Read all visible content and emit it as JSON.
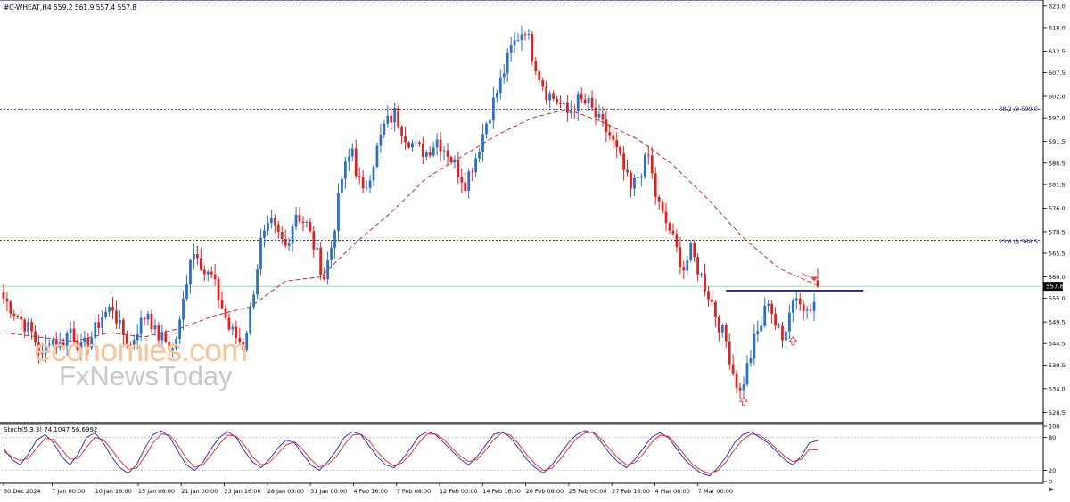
{
  "header": {
    "symbol_line": "#C-WHEAT,H4  559.2 561.9 557.4 557.8",
    "stoch_label": "Stoch(5,3,3) 74.1047 56.6992"
  },
  "watermark": {
    "line1": "economies.com",
    "line2": "FxNewsToday"
  },
  "fib_labels": {
    "fib382": "38.2 @ 599.0",
    "fib236": "23.6 @ 568.5"
  },
  "current_price_tag": "557.8",
  "colors": {
    "bull": "#2a6fc9",
    "bear": "#e0201f",
    "ma": "#b01a1a",
    "fib_line": "#1a1a6e",
    "resistance": "#000080",
    "current_price": "#7fbfbf",
    "stoch_main": "#2222bb",
    "stoch_signal": "#dd2222",
    "arrow": "#e04040"
  },
  "chart_data": [
    {
      "type": "candlestick",
      "title": "#C-WHEAT,H4",
      "ohlc_header": {
        "open": 559.2,
        "high": 561.9,
        "low": 557.4,
        "close": 557.8
      },
      "ylim": [
        526.5,
        624
      ],
      "y_ticks": [
        "623.0",
        "618.0",
        "612.5",
        "607.5",
        "602.0",
        "597.0",
        "591.5",
        "586.5",
        "581.5",
        "576.0",
        "570.5",
        "565.5",
        "560.0",
        "555.0",
        "549.5",
        "544.5",
        "539.5",
        "534.0",
        "528.5"
      ],
      "x_ticks": [
        "30 Dec 2024",
        "7 Jan 00:00",
        "10 Jan 16:00",
        "15 Jan 08:00",
        "21 Jan 00:00",
        "23 Jan 16:00",
        "28 Jan 08:00",
        "31 Jan 00:00",
        "4 Feb 16:00",
        "7 Feb 08:00",
        "12 Feb 00:00",
        "14 Feb 16:00",
        "20 Feb 08:00",
        "25 Feb 00:00",
        "27 Feb 16:00",
        "4 Mar 08:00",
        "7 Mar 00:00"
      ],
      "close_path": [
        [
          0,
          555
        ],
        [
          4,
          551
        ],
        [
          8,
          547
        ],
        [
          11,
          541
        ],
        [
          13,
          546
        ],
        [
          16,
          544
        ],
        [
          19,
          548
        ],
        [
          22,
          543
        ],
        [
          25,
          546
        ],
        [
          28,
          551
        ],
        [
          31,
          553
        ],
        [
          33,
          548
        ],
        [
          36,
          544
        ],
        [
          38,
          548
        ],
        [
          41,
          552
        ],
        [
          43,
          547
        ],
        [
          46,
          545
        ],
        [
          48,
          543
        ],
        [
          50,
          549
        ],
        [
          53,
          565
        ],
        [
          55,
          566
        ],
        [
          57,
          561
        ],
        [
          59,
          560
        ],
        [
          62,
          553
        ],
        [
          64,
          548
        ],
        [
          66,
          546
        ],
        [
          68,
          544
        ],
        [
          70,
          552
        ],
        [
          73,
          568
        ],
        [
          76,
          572
        ],
        [
          80,
          567
        ],
        [
          83,
          575
        ],
        [
          86,
          572
        ],
        [
          89,
          565
        ],
        [
          91,
          560
        ],
        [
          93,
          567
        ],
        [
          96,
          583
        ],
        [
          99,
          590
        ],
        [
          100,
          585
        ],
        [
          102,
          579
        ],
        [
          105,
          587
        ],
        [
          108,
          595
        ],
        [
          111,
          598
        ],
        [
          114,
          593
        ],
        [
          117,
          590
        ],
        [
          120,
          589
        ],
        [
          123,
          592
        ],
        [
          126,
          589
        ],
        [
          128,
          586
        ],
        [
          131,
          582
        ],
        [
          134,
          588
        ],
        [
          137,
          596
        ],
        [
          140,
          603
        ],
        [
          142,
          608
        ],
        [
          144,
          613
        ],
        [
          146,
          616
        ],
        [
          148,
          618
        ],
        [
          150,
          612
        ],
        [
          152,
          607
        ],
        [
          154,
          603
        ],
        [
          157,
          601
        ],
        [
          160,
          598
        ],
        [
          163,
          601
        ],
        [
          166,
          600
        ],
        [
          169,
          596
        ],
        [
          172,
          593
        ],
        [
          175,
          587
        ],
        [
          178,
          580
        ],
        [
          181,
          585
        ],
        [
          183,
          588
        ],
        [
          185,
          579
        ],
        [
          187,
          574
        ],
        [
          189,
          571
        ],
        [
          191,
          566
        ],
        [
          193,
          562
        ],
        [
          195,
          566
        ],
        [
          197,
          562
        ],
        [
          199,
          558
        ],
        [
          201,
          554
        ],
        [
          203,
          549
        ],
        [
          205,
          545
        ],
        [
          207,
          538
        ],
        [
          209,
          533
        ],
        [
          211,
          539
        ],
        [
          213,
          545
        ],
        [
          215,
          549
        ],
        [
          217,
          555
        ],
        [
          219,
          549
        ],
        [
          221,
          545
        ],
        [
          223,
          553
        ],
        [
          225,
          556
        ],
        [
          227,
          552
        ],
        [
          229,
          554
        ],
        [
          231,
          557.8
        ]
      ],
      "moving_average_dashed": [
        [
          0,
          547
        ],
        [
          10,
          546
        ],
        [
          20,
          545
        ],
        [
          30,
          547
        ],
        [
          40,
          546
        ],
        [
          50,
          548
        ],
        [
          60,
          551
        ],
        [
          70,
          553
        ],
        [
          80,
          559
        ],
        [
          90,
          560
        ],
        [
          100,
          568
        ],
        [
          110,
          575
        ],
        [
          120,
          583
        ],
        [
          130,
          588
        ],
        [
          140,
          593
        ],
        [
          150,
          597
        ],
        [
          160,
          599
        ],
        [
          170,
          596
        ],
        [
          180,
          592
        ],
        [
          190,
          586
        ],
        [
          200,
          578
        ],
        [
          210,
          569
        ],
        [
          220,
          562
        ],
        [
          231,
          558
        ]
      ],
      "fibonacci_levels": [
        {
          "label": "38.2 @ 599.0",
          "value": 599.0
        },
        {
          "label": "23.6 @ 568.5",
          "value": 568.5
        }
      ],
      "top_level": 623.5,
      "resistance_line": {
        "value": 556.8,
        "from_bar": 205,
        "to_bar": 244
      },
      "current_price": 557.8,
      "arrows": [
        {
          "bar": 210,
          "value": 531,
          "direction": "up"
        },
        {
          "bar": 224,
          "value": 545,
          "direction": "up"
        },
        {
          "bar": 230,
          "value": 560,
          "direction": "down"
        }
      ]
    },
    {
      "type": "line",
      "title": "Stoch(5,3,3) 74.1047 56.6992",
      "ylim": [
        0,
        100
      ],
      "y_ticks": [
        "100",
        "80",
        "20",
        "0"
      ],
      "levels": [
        80,
        20
      ],
      "series": [
        {
          "name": "Main",
          "values": [
            60,
            40,
            30,
            50,
            75,
            85,
            70,
            45,
            30,
            50,
            80,
            88,
            70,
            45,
            25,
            15,
            30,
            60,
            85,
            92,
            80,
            55,
            30,
            20,
            35,
            60,
            80,
            90,
            80,
            55,
            35,
            25,
            40,
            60,
            75,
            70,
            50,
            30,
            20,
            35,
            55,
            80,
            90,
            85,
            65,
            45,
            30,
            25,
            40,
            60,
            82,
            90,
            85,
            70,
            55,
            40,
            30,
            45,
            65,
            85,
            90,
            80,
            60,
            40,
            25,
            15,
            30,
            50,
            70,
            85,
            92,
            88,
            70,
            50,
            35,
            25,
            40,
            60,
            80,
            88,
            80,
            60,
            40,
            25,
            15,
            10,
            25,
            45,
            70,
            85,
            90,
            80,
            70,
            55,
            40,
            30,
            45,
            70,
            74
          ]
        },
        {
          "name": "Signal",
          "values": [
            55,
            45,
            38,
            42,
            60,
            78,
            76,
            58,
            40,
            42,
            62,
            80,
            76,
            58,
            38,
            22,
            24,
            45,
            70,
            86,
            84,
            66,
            42,
            26,
            30,
            48,
            68,
            84,
            82,
            66,
            44,
            30,
            34,
            50,
            66,
            72,
            58,
            40,
            26,
            30,
            44,
            66,
            84,
            86,
            74,
            54,
            38,
            28,
            34,
            50,
            70,
            86,
            86,
            76,
            60,
            46,
            36,
            40,
            56,
            76,
            88,
            84,
            68,
            48,
            32,
            20,
            24,
            40,
            60,
            78,
            88,
            89,
            76,
            58,
            42,
            30,
            34,
            50,
            70,
            84,
            82,
            66,
            48,
            30,
            20,
            14,
            20,
            36,
            58,
            76,
            86,
            84,
            74,
            60,
            46,
            36,
            40,
            58,
            57
          ]
        }
      ]
    }
  ]
}
